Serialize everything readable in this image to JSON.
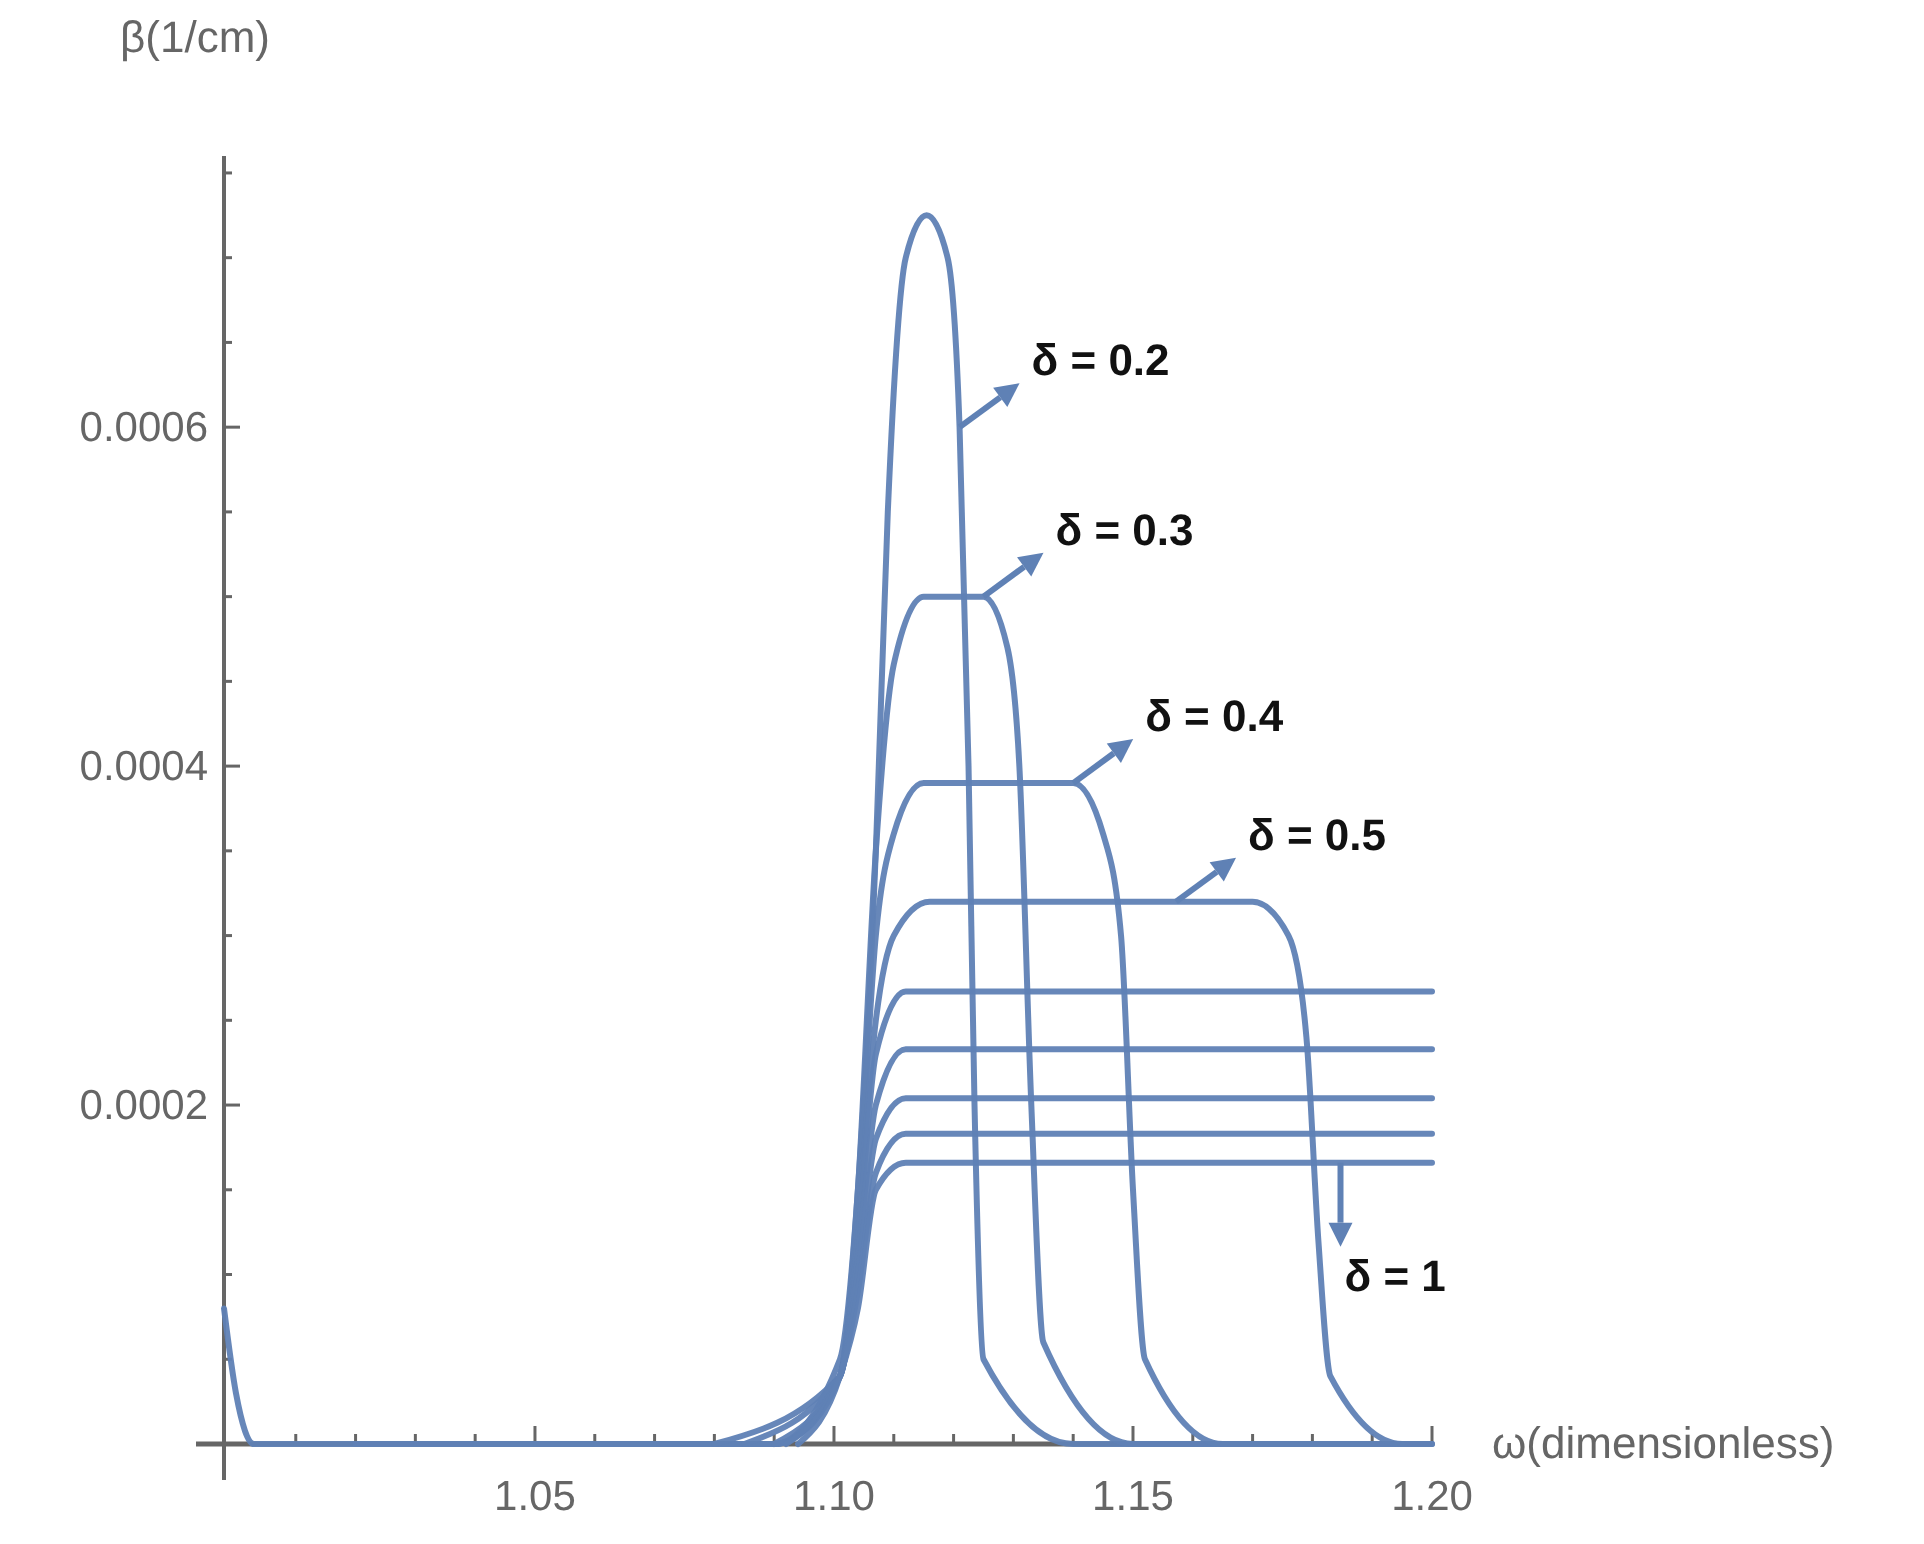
{
  "chart_data": {
    "type": "line",
    "xlabel": "ω(dimensionless)",
    "ylabel": "β(1/cm)",
    "xlim": [
      0.998,
      1.2
    ],
    "ylim": [
      0,
      0.00076
    ],
    "xticks": [
      {
        "value": 1.01,
        "label": null
      },
      {
        "value": 1.02,
        "label": null
      },
      {
        "value": 1.03,
        "label": null
      },
      {
        "value": 1.04,
        "label": null
      },
      {
        "value": 1.05,
        "label": "1.05"
      },
      {
        "value": 1.06,
        "label": null
      },
      {
        "value": 1.07,
        "label": null
      },
      {
        "value": 1.08,
        "label": null
      },
      {
        "value": 1.09,
        "label": null
      },
      {
        "value": 1.1,
        "label": "1.10"
      },
      {
        "value": 1.11,
        "label": null
      },
      {
        "value": 1.12,
        "label": null
      },
      {
        "value": 1.13,
        "label": null
      },
      {
        "value": 1.14,
        "label": null
      },
      {
        "value": 1.15,
        "label": "1.15"
      },
      {
        "value": 1.16,
        "label": null
      },
      {
        "value": 1.17,
        "label": null
      },
      {
        "value": 1.18,
        "label": null
      },
      {
        "value": 1.19,
        "label": null
      },
      {
        "value": 1.2,
        "label": "1.20"
      }
    ],
    "yticks": [
      {
        "value": 5e-05,
        "label": null
      },
      {
        "value": 0.0001,
        "label": null
      },
      {
        "value": 0.00015,
        "label": null
      },
      0.0002,
      {
        "value": 0.00025,
        "label": null
      },
      {
        "value": 0.0003,
        "label": null
      },
      {
        "value": 0.00035,
        "label": null
      },
      0.0004,
      {
        "value": 0.00045,
        "label": null
      },
      {
        "value": 0.0005,
        "label": null
      },
      {
        "value": 0.00055,
        "label": null
      },
      0.0006,
      {
        "value": 0.00065,
        "label": null
      },
      {
        "value": 0.0007,
        "label": null
      },
      {
        "value": 0.00075,
        "label": null
      }
    ],
    "grid": false,
    "marker": "none",
    "line_style": "solid",
    "series": [
      {
        "color": "#5f81b5",
        "x": [
          0.998,
          1.0,
          1.003,
          1.09,
          1.101,
          1.104,
          1.107,
          1.109,
          1.112,
          1.1155,
          1.119,
          1.121,
          1.1225,
          1.1235,
          1.125,
          1.14,
          1.2
        ],
        "values": [
          8e-05,
          3e-05,
          0,
          0,
          5e-05,
          0.00015,
          0.00035,
          0.00055,
          0.0007,
          0.000725,
          0.0007,
          0.0006,
          0.0004,
          0.0002,
          5e-05,
          0,
          0
        ]
      },
      {
        "color": "#5f81b5",
        "x": [
          1.02,
          1.09,
          1.101,
          1.104,
          1.107,
          1.11,
          1.115,
          1.125,
          1.129,
          1.131,
          1.133,
          1.135,
          1.15,
          1.19
        ],
        "values": [
          0,
          0,
          4e-05,
          0.00015,
          0.00035,
          0.00046,
          0.0005,
          0.0005,
          0.00047,
          0.0004,
          0.0002,
          6e-05,
          0,
          0
        ]
      },
      {
        "color": "#5f81b5",
        "x": [
          1.04,
          1.09,
          1.101,
          1.104,
          1.107,
          1.11,
          1.115,
          1.14,
          1.145,
          1.148,
          1.15,
          1.152,
          1.165,
          1.195
        ],
        "values": [
          0,
          0,
          4e-05,
          0.00014,
          0.0003,
          0.00036,
          0.00039,
          0.00039,
          0.00036,
          0.0003,
          0.00015,
          5e-05,
          0,
          0
        ]
      },
      {
        "color": "#5f81b5",
        "x": [
          1.06,
          1.09,
          1.101,
          1.104,
          1.107,
          1.11,
          1.116,
          1.17,
          1.176,
          1.179,
          1.181,
          1.183,
          1.195,
          1.2
        ],
        "values": [
          0,
          0,
          4e-05,
          0.00013,
          0.00025,
          0.0003,
          0.00032,
          0.00032,
          0.0003,
          0.00024,
          0.00012,
          4e-05,
          0,
          0
        ]
      },
      {
        "color": "#5f81b5",
        "x": [
          1.08,
          1.101,
          1.104,
          1.107,
          1.112,
          1.2
        ],
        "values": [
          0,
          4e-05,
          0.00012,
          0.00023,
          0.000267,
          0.000267
        ]
      },
      {
        "color": "#5f81b5",
        "x": [
          1.085,
          1.101,
          1.104,
          1.107,
          1.112,
          1.2
        ],
        "values": [
          0,
          4e-05,
          0.00011,
          0.0002,
          0.000233,
          0.000233
        ]
      },
      {
        "color": "#5f81b5",
        "x": [
          1.09,
          1.101,
          1.104,
          1.107,
          1.112,
          1.2
        ],
        "values": [
          0,
          4e-05,
          0.0001,
          0.00018,
          0.000204,
          0.000204
        ]
      },
      {
        "color": "#5f81b5",
        "x": [
          1.092,
          1.101,
          1.104,
          1.107,
          1.112,
          1.2
        ],
        "values": [
          0,
          4e-05,
          9e-05,
          0.00016,
          0.000183,
          0.000183
        ]
      },
      {
        "color": "#5f81b5",
        "x": [
          1.094,
          1.101,
          1.104,
          1.107,
          1.112,
          1.2
        ],
        "values": [
          0,
          4e-05,
          8e-05,
          0.00015,
          0.000166,
          0.000166
        ]
      }
    ],
    "annotations": [
      {
        "text": "δ = 0.2",
        "x": 1.121,
        "y": 0.0006
      },
      {
        "text": "δ = 0.3",
        "x": 1.125,
        "y": 0.0005
      },
      {
        "text": "δ = 0.4",
        "x": 1.14,
        "y": 0.00039
      },
      {
        "text": "δ = 0.5",
        "x": 1.1572,
        "y": 0.00032
      },
      {
        "text": "δ = 1",
        "x": 1.1847,
        "y": 0.000166
      }
    ]
  }
}
